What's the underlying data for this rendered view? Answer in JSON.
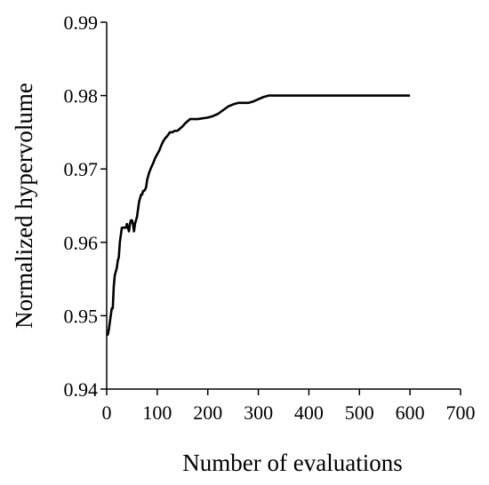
{
  "chart_data": {
    "type": "line",
    "title": "",
    "xlabel": "Number of evaluations",
    "ylabel": "Normalized hypervolume",
    "xlim": [
      0,
      700
    ],
    "ylim": [
      0.94,
      0.99
    ],
    "x_ticks": [
      0,
      100,
      200,
      300,
      400,
      500,
      600,
      700
    ],
    "x_tick_labels": [
      "0",
      "100",
      "200",
      "300",
      "400",
      "500",
      "600",
      "700"
    ],
    "y_ticks": [
      0.94,
      0.95,
      0.96,
      0.97,
      0.98,
      0.99
    ],
    "y_tick_labels": [
      "0.94",
      "0.95",
      "0.96",
      "0.97",
      "0.98",
      "0.99"
    ],
    "grid": false,
    "line_color": "#000000",
    "series": [
      {
        "x": [
          0,
          2,
          4,
          6,
          8,
          10,
          12,
          14,
          16,
          18,
          20,
          22,
          24,
          26,
          28,
          30,
          32,
          34,
          36,
          38,
          40,
          42,
          44,
          46,
          48,
          50,
          52,
          54,
          56,
          58,
          60,
          62,
          64,
          66,
          68,
          70,
          72,
          74,
          76,
          78,
          80,
          84,
          88,
          92,
          96,
          100,
          104,
          108,
          112,
          116,
          120,
          125,
          130,
          135,
          140,
          145,
          150,
          155,
          160,
          165,
          170,
          175,
          180,
          190,
          200,
          210,
          220,
          230,
          240,
          250,
          260,
          270,
          280,
          290,
          300,
          310,
          320,
          330,
          340,
          360,
          400,
          450,
          500,
          550,
          600
        ],
        "y": [
          0.9474,
          0.9474,
          0.948,
          0.949,
          0.95,
          0.951,
          0.951,
          0.954,
          0.9555,
          0.956,
          0.9565,
          0.9575,
          0.958,
          0.96,
          0.961,
          0.962,
          0.962,
          0.962,
          0.962,
          0.962,
          0.9625,
          0.962,
          0.9615,
          0.9625,
          0.963,
          0.963,
          0.9625,
          0.9615,
          0.9625,
          0.963,
          0.9635,
          0.9645,
          0.9655,
          0.966,
          0.9665,
          0.9665,
          0.967,
          0.967,
          0.9672,
          0.9675,
          0.9685,
          0.9695,
          0.9702,
          0.9708,
          0.9715,
          0.972,
          0.9725,
          0.9732,
          0.9738,
          0.9742,
          0.9745,
          0.975,
          0.975,
          0.9752,
          0.9752,
          0.9755,
          0.9758,
          0.9762,
          0.9765,
          0.9768,
          0.9768,
          0.9768,
          0.9768,
          0.9769,
          0.977,
          0.9772,
          0.9775,
          0.978,
          0.9785,
          0.9788,
          0.979,
          0.979,
          0.979,
          0.9792,
          0.9795,
          0.9798,
          0.98,
          0.98,
          0.98,
          0.98,
          0.98,
          0.98,
          0.98,
          0.98,
          0.98
        ]
      }
    ]
  }
}
